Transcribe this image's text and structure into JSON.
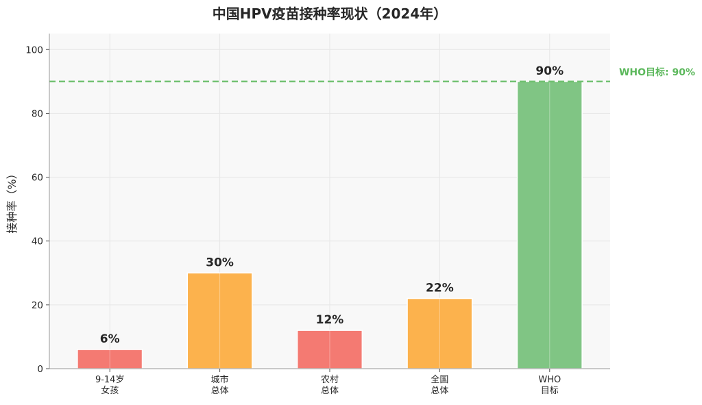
{
  "chart_data": {
    "type": "bar",
    "title": "中国HPV疫苗接种率现状（2024年）",
    "ylabel": "接种率（%）",
    "xlabel": "",
    "ylim": [
      0,
      105
    ],
    "yticks": [
      0,
      20,
      40,
      60,
      80,
      100
    ],
    "grid": true,
    "categories": [
      [
        "9-14岁",
        "女孩"
      ],
      [
        "城市",
        "总体"
      ],
      [
        "农村",
        "总体"
      ],
      [
        "全国",
        "总体"
      ],
      [
        "WHO",
        "目标"
      ]
    ],
    "values": [
      6,
      30,
      12,
      22,
      90
    ],
    "data_labels": [
      "6%",
      "30%",
      "12%",
      "22%",
      "90%"
    ],
    "bar_colors": [
      "#f47a72",
      "#fcb24d",
      "#f47a72",
      "#fcb24d",
      "#80c584"
    ],
    "reference_line": {
      "value": 90,
      "label": "WHO目标: 90%",
      "color": "#5cb85c",
      "style": "dashed"
    }
  }
}
